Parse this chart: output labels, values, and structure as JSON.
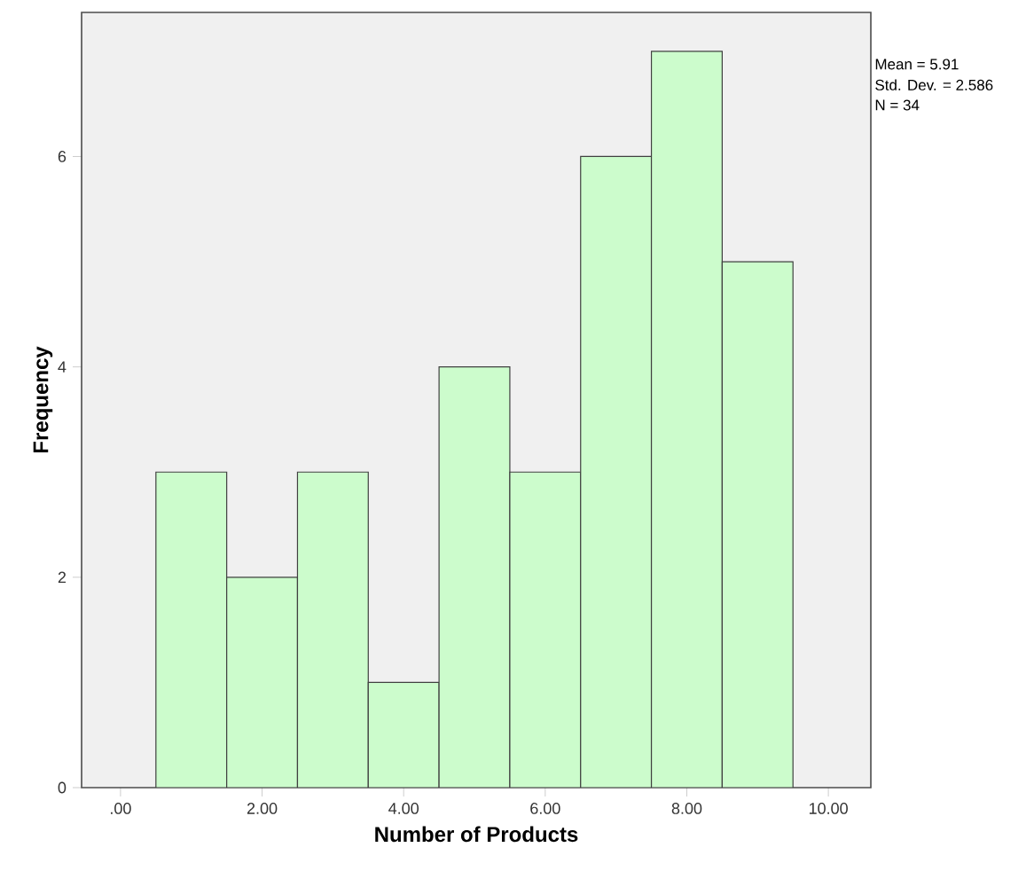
{
  "chart_data": {
    "type": "histogram",
    "xlabel": "Number of Products",
    "ylabel": "Frequency",
    "bins": [
      0.5,
      1.5,
      2.5,
      3.5,
      4.5,
      5.5,
      6.5,
      7.5,
      8.5,
      9.5
    ],
    "values": [
      3,
      2,
      3,
      1,
      4,
      3,
      6,
      7,
      5
    ],
    "color": "#ccfccc",
    "xlim": [
      -0.55,
      10.6
    ],
    "ylim": [
      0,
      7.37
    ],
    "xticks": [
      {
        "value": 0,
        "label": ".00"
      },
      {
        "value": 2,
        "label": "2.00"
      },
      {
        "value": 4,
        "label": "4.00"
      },
      {
        "value": 6,
        "label": "6.00"
      },
      {
        "value": 8,
        "label": "8.00"
      },
      {
        "value": 10,
        "label": "10.00"
      }
    ],
    "yticks": [
      0,
      2,
      4,
      6
    ],
    "grid": false,
    "annotations": [
      "Mean = 5.91",
      "Std. Dev. = 2.586",
      "N = 34"
    ]
  }
}
